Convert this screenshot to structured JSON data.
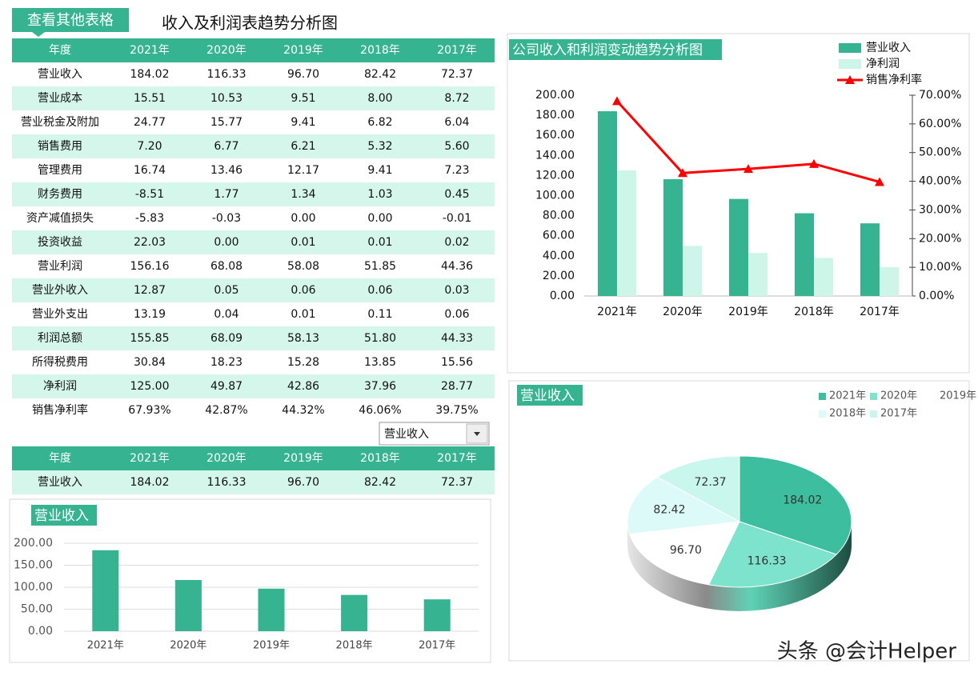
{
  "header": {
    "button": "查看其他表格",
    "title": "收入及利润表趋势分析图"
  },
  "table": {
    "header": [
      "年度",
      "2021年",
      "2020年",
      "2019年",
      "2018年",
      "2017年"
    ],
    "rows": [
      [
        "营业收入",
        "184.02",
        "116.33",
        "96.70",
        "82.42",
        "72.37"
      ],
      [
        "营业成本",
        "15.51",
        "10.53",
        "9.51",
        "8.00",
        "8.72"
      ],
      [
        "营业税金及附加",
        "24.77",
        "15.77",
        "9.41",
        "6.82",
        "6.04"
      ],
      [
        "销售费用",
        "7.20",
        "6.77",
        "6.21",
        "5.32",
        "5.60"
      ],
      [
        "管理费用",
        "16.74",
        "13.46",
        "12.17",
        "9.41",
        "7.23"
      ],
      [
        "财务费用",
        "-8.51",
        "1.77",
        "1.34",
        "1.03",
        "0.45"
      ],
      [
        "资产减值损失",
        "-5.83",
        "-0.03",
        "0.00",
        "0.00",
        "-0.01"
      ],
      [
        "投资收益",
        "22.03",
        "0.00",
        "0.01",
        "0.01",
        "0.02"
      ],
      [
        "营业利润",
        "156.16",
        "68.08",
        "58.08",
        "51.85",
        "44.36"
      ],
      [
        "营业外收入",
        "12.87",
        "0.05",
        "0.06",
        "0.06",
        "0.03"
      ],
      [
        "营业外支出",
        "13.19",
        "0.04",
        "0.01",
        "0.11",
        "0.06"
      ],
      [
        "利润总额",
        "155.85",
        "68.09",
        "58.13",
        "51.80",
        "44.33"
      ],
      [
        "所得税费用",
        "30.84",
        "18.23",
        "15.28",
        "13.85",
        "15.56"
      ],
      [
        "净利润",
        "125.00",
        "49.87",
        "42.86",
        "37.96",
        "28.77"
      ],
      [
        "销售净利率",
        "67.93%",
        "42.87%",
        "44.32%",
        "46.06%",
        "39.75%"
      ]
    ]
  },
  "dropdown": "营业收入",
  "table2": {
    "header": [
      "年度",
      "2021年",
      "2020年",
      "2019年",
      "2018年",
      "2017年"
    ],
    "rows": [
      [
        "营业收入",
        "184.02",
        "116.33",
        "96.70",
        "82.42",
        "72.37"
      ]
    ]
  },
  "charts": [
    {
      "type": "combo",
      "title": "公司收入和利润变动趋势分析图",
      "categories": [
        "2021年",
        "2020年",
        "2019年",
        "2018年",
        "2017年"
      ],
      "series": [
        {
          "name": "营业收入",
          "type": "bar",
          "color": "#36b391",
          "values": [
            184.02,
            116.33,
            96.7,
            82.42,
            72.37
          ]
        },
        {
          "name": "净利润",
          "type": "bar",
          "color": "#cdf6e8",
          "values": [
            125.0,
            49.87,
            42.86,
            37.96,
            28.77
          ]
        },
        {
          "name": "销售净利率",
          "type": "line",
          "axis": "y2",
          "color": "#ff0000",
          "values": [
            67.93,
            42.87,
            44.32,
            46.06,
            39.75
          ]
        }
      ],
      "ylim": [
        0,
        200
      ],
      "yticks": [
        {
          "value": 0,
          "label": "0.00"
        },
        {
          "value": 20,
          "label": "20.00"
        },
        {
          "value": 40,
          "label": "40.00"
        },
        {
          "value": 60,
          "label": "60.00"
        },
        {
          "value": 80,
          "label": "80.00"
        },
        {
          "value": 100,
          "label": "100.00"
        },
        {
          "value": 120,
          "label": "120.00"
        },
        {
          "value": 140,
          "label": "140.00"
        },
        {
          "value": 160,
          "label": "160.00"
        },
        {
          "value": 180,
          "label": "180.00"
        },
        {
          "value": 200,
          "label": "200.00"
        }
      ],
      "y2lim": [
        0,
        70
      ],
      "y2ticks": [
        {
          "value": 0,
          "label": "0.00%"
        },
        {
          "value": 10,
          "label": "10.00%"
        },
        {
          "value": 20,
          "label": "20.00%"
        },
        {
          "value": 30,
          "label": "30.00%"
        },
        {
          "value": 40,
          "label": "40.00%"
        },
        {
          "value": 50,
          "label": "50.00%"
        },
        {
          "value": 60,
          "label": "60.00%"
        },
        {
          "value": 70,
          "label": "70.00%"
        }
      ],
      "legend": "top-right"
    },
    {
      "type": "bar",
      "title": "营业收入",
      "categories": [
        "2021年",
        "2020年",
        "2019年",
        "2018年",
        "2017年"
      ],
      "values": [
        184.02,
        116.33,
        96.7,
        82.42,
        72.37
      ],
      "color": "#36b391",
      "ylim": [
        0,
        200
      ],
      "yticks": [
        {
          "value": 0,
          "label": "0.00"
        },
        {
          "value": 50,
          "label": "50.00"
        },
        {
          "value": 100,
          "label": "100.00"
        },
        {
          "value": 150,
          "label": "150.00"
        },
        {
          "value": 200,
          "label": "200.00"
        }
      ],
      "grid": true
    },
    {
      "type": "pie",
      "title": "营业收入",
      "categories": [
        "2021年",
        "2020年",
        "2019年",
        "2018年",
        "2017年"
      ],
      "values": [
        184.02,
        116.33,
        96.7,
        82.42,
        72.37
      ],
      "value_labels": [
        "184.02",
        "116.33",
        "96.70",
        "82.42",
        "72.37"
      ],
      "colors": [
        "#3dbf9f",
        "#7de3cc",
        "#ffffff",
        "#dcfbf8",
        "#c9f7ee"
      ],
      "legend": "top-right"
    }
  ],
  "watermark": "头条 @会计Helper"
}
